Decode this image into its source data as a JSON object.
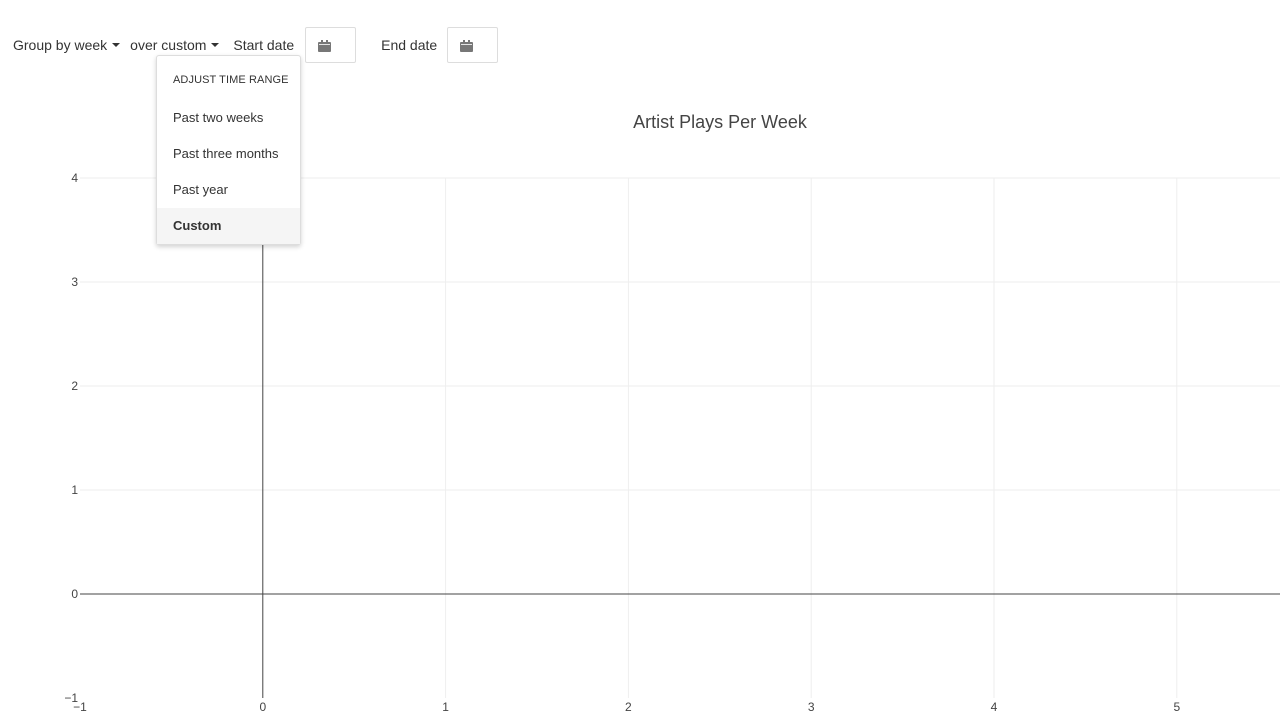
{
  "toolbar": {
    "group_by_label": "Group by week",
    "range_label": "over custom",
    "start_date_label": "Start date",
    "end_date_label": "End date",
    "start_date_value": "",
    "end_date_value": ""
  },
  "range_menu": {
    "header": "ADJUST TIME RANGE",
    "items": [
      {
        "label": "Past two weeks",
        "active": false
      },
      {
        "label": "Past three months",
        "active": false
      },
      {
        "label": "Past year",
        "active": false
      },
      {
        "label": "Custom",
        "active": true
      }
    ]
  },
  "chart_data": {
    "type": "line",
    "title": "Artist Plays Per Week",
    "xlabel": "",
    "ylabel": "",
    "xlim": [
      -1,
      5.5
    ],
    "ylim": [
      -1,
      4
    ],
    "xticks": [
      -1,
      0,
      1,
      2,
      3,
      4,
      5
    ],
    "yticks": [
      -1,
      0,
      1,
      2,
      3,
      4
    ],
    "xtick_labels": [
      "−1",
      "0",
      "1",
      "2",
      "3",
      "4",
      "5"
    ],
    "ytick_labels": [
      "−1",
      "0",
      "1",
      "2",
      "3",
      "4"
    ],
    "grid": true,
    "series": []
  }
}
